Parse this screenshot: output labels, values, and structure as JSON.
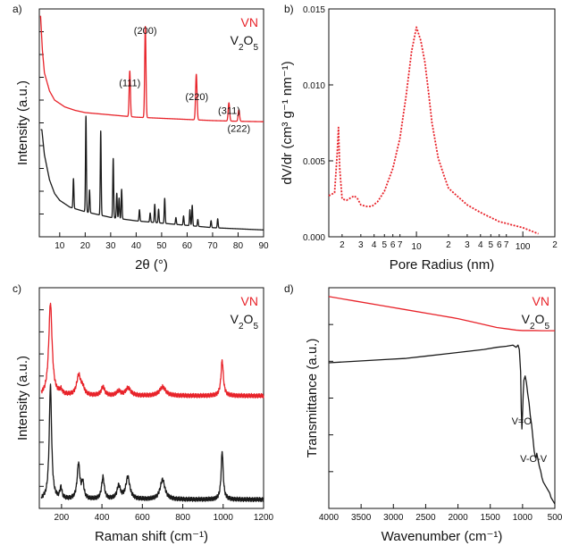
{
  "colors": {
    "vn": "#e8232a",
    "v2o5": "#1a1a1a"
  },
  "panels": [
    {
      "id": "a",
      "label": "a)"
    },
    {
      "id": "b",
      "label": "b)"
    },
    {
      "id": "c",
      "label": "c)"
    },
    {
      "id": "d",
      "label": "d)"
    }
  ],
  "chart_data": [
    {
      "id": "a",
      "type": "line",
      "xlabel": "2θ (°)",
      "ylabel": "Intensity (a.u.)",
      "xlim": [
        2,
        90
      ],
      "ylim": [
        0,
        1
      ],
      "xticks": [
        10,
        20,
        30,
        40,
        50,
        60,
        70,
        80,
        90
      ],
      "yticks_labeled": false,
      "legend": [
        "VN",
        "V2O5"
      ],
      "legend_position": "top-right",
      "annotations": [
        {
          "text": "(111)",
          "x": 37.5,
          "y": 0.66
        },
        {
          "text": "(200)",
          "x": 43.6,
          "y": 0.89
        },
        {
          "text": "(220)",
          "x": 63.8,
          "y": 0.6
        },
        {
          "text": "(311)",
          "x": 76.5,
          "y": 0.54
        },
        {
          "text": "(222)",
          "x": 80.3,
          "y": 0.46
        }
      ],
      "series": [
        {
          "name": "VN",
          "color_key": "vn",
          "baseline": [
            [
              2.5,
              0.97
            ],
            [
              3.2,
              0.82
            ],
            [
              4,
              0.72
            ],
            [
              6,
              0.64
            ],
            [
              8,
              0.6
            ],
            [
              12,
              0.57
            ],
            [
              16,
              0.555
            ],
            [
              20,
              0.545
            ],
            [
              30,
              0.535
            ],
            [
              40,
              0.525
            ],
            [
              50,
              0.52
            ],
            [
              60,
              0.515
            ],
            [
              70,
              0.51
            ],
            [
              80,
              0.507
            ],
            [
              90,
              0.505
            ]
          ],
          "peaks": [
            [
              37.5,
              0.2,
              0.35
            ],
            [
              43.6,
              0.4,
              0.35
            ],
            [
              63.6,
              0.2,
              0.4
            ],
            [
              76.4,
              0.08,
              0.4
            ],
            [
              80.3,
              0.05,
              0.4
            ]
          ]
        },
        {
          "name": "V2O5",
          "color_key": "v2o5",
          "baseline": [
            [
              3,
              0.47
            ],
            [
              4,
              0.36
            ],
            [
              6,
              0.25
            ],
            [
              8,
              0.19
            ],
            [
              10,
              0.16
            ],
            [
              14,
              0.13
            ],
            [
              20,
              0.11
            ],
            [
              30,
              0.085
            ],
            [
              40,
              0.07
            ],
            [
              50,
              0.06
            ],
            [
              60,
              0.05
            ],
            [
              70,
              0.04
            ],
            [
              80,
              0.035
            ],
            [
              90,
              0.03
            ]
          ],
          "peaks": [
            [
              15.4,
              0.13,
              0.25
            ],
            [
              20.3,
              0.42,
              0.25
            ],
            [
              21.7,
              0.1,
              0.25
            ],
            [
              26.1,
              0.37,
              0.25
            ],
            [
              31.0,
              0.26,
              0.25
            ],
            [
              32.4,
              0.11,
              0.25
            ],
            [
              33.3,
              0.09,
              0.25
            ],
            [
              34.3,
              0.13,
              0.25
            ],
            [
              41.3,
              0.05,
              0.25
            ],
            [
              45.5,
              0.04,
              0.25
            ],
            [
              47.3,
              0.08,
              0.25
            ],
            [
              48.8,
              0.06,
              0.25
            ],
            [
              51.2,
              0.11,
              0.25
            ],
            [
              55.6,
              0.03,
              0.25
            ],
            [
              58.6,
              0.04,
              0.25
            ],
            [
              61.1,
              0.07,
              0.25
            ],
            [
              62.0,
              0.09,
              0.25
            ],
            [
              64.2,
              0.03,
              0.25
            ],
            [
              69.4,
              0.03,
              0.25
            ],
            [
              72.0,
              0.04,
              0.25
            ]
          ]
        }
      ]
    },
    {
      "id": "b",
      "type": "line",
      "xscale": "log",
      "xlabel": "Pore Radius (nm)",
      "ylabel": "dV/dr (cm³ g⁻¹ nm⁻¹)",
      "xlim": [
        1.5,
        200
      ],
      "ylim": [
        0,
        0.015
      ],
      "xticks_major": [
        10,
        100
      ],
      "xticks_minor": [
        [
          2,
          "2"
        ],
        [
          3,
          "3"
        ],
        [
          4,
          "4"
        ],
        [
          5,
          "5"
        ],
        [
          6,
          "6"
        ],
        [
          7,
          "7"
        ],
        [
          20,
          "2"
        ],
        [
          30,
          "3"
        ],
        [
          40,
          "4"
        ],
        [
          50,
          "5"
        ],
        [
          60,
          "6"
        ],
        [
          70,
          "7"
        ],
        [
          200,
          "2"
        ]
      ],
      "yticks": [
        0.0,
        0.005,
        0.01,
        0.015
      ],
      "ytick_labels": [
        "0.000",
        "0.005",
        "0.010",
        "0.015"
      ],
      "series": [
        {
          "name": "",
          "color_key": "vn",
          "style": "dotted",
          "x": [
            1.5,
            1.7,
            1.8,
            1.85,
            1.9,
            2.0,
            2.2,
            2.6,
            2.8,
            3.0,
            3.4,
            3.8,
            4.3,
            5,
            6,
            7,
            8,
            9,
            10,
            11,
            12,
            13,
            14,
            16,
            18,
            20,
            24,
            30,
            40,
            60,
            100,
            140
          ],
          "y": [
            0.0027,
            0.0029,
            0.0055,
            0.0072,
            0.0045,
            0.0025,
            0.0024,
            0.0027,
            0.0025,
            0.0021,
            0.002,
            0.002,
            0.0023,
            0.003,
            0.0045,
            0.0065,
            0.0093,
            0.0122,
            0.0138,
            0.0129,
            0.0115,
            0.0095,
            0.0075,
            0.0052,
            0.0041,
            0.0032,
            0.0027,
            0.0021,
            0.0016,
            0.001,
            0.0006,
            0.0002
          ]
        }
      ]
    },
    {
      "id": "c",
      "type": "line",
      "xlabel": "Raman shift (cm⁻¹)",
      "ylabel": "Intensity (a.u.)",
      "xlim": [
        90,
        1200
      ],
      "ylim": [
        0,
        1
      ],
      "xticks": [
        200,
        400,
        600,
        800,
        1000,
        1200
      ],
      "yticks_labeled": false,
      "legend": [
        "VN",
        "V2O5"
      ],
      "legend_position": "top-right",
      "series": [
        {
          "name": "VN",
          "color_key": "vn",
          "base": 0.51,
          "peaks": [
            [
              145,
              0.42,
              10
            ],
            [
              197,
              0.02,
              8
            ],
            [
              285,
              0.09,
              12
            ],
            [
              305,
              0.03,
              10
            ],
            [
              405,
              0.04,
              10
            ],
            [
              483,
              0.02,
              12
            ],
            [
              530,
              0.035,
              15
            ],
            [
              700,
              0.04,
              18
            ],
            [
              995,
              0.16,
              7
            ]
          ]
        },
        {
          "name": "V2O5",
          "color_key": "v2o5",
          "base": 0.04,
          "peaks": [
            [
              145,
              0.52,
              7
            ],
            [
              197,
              0.05,
              6
            ],
            [
              284,
              0.16,
              8
            ],
            [
              305,
              0.07,
              7
            ],
            [
              405,
              0.1,
              8
            ],
            [
              483,
              0.06,
              10
            ],
            [
              528,
              0.1,
              12
            ],
            [
              700,
              0.09,
              14
            ],
            [
              995,
              0.22,
              6
            ]
          ]
        }
      ]
    },
    {
      "id": "d",
      "type": "line",
      "xlabel": "Wavenumber (cm⁻¹)",
      "ylabel": "Transmittance (a.u.)",
      "xlim": [
        4000,
        500
      ],
      "ylim": [
        0,
        1
      ],
      "xticks": [
        4000,
        3500,
        3000,
        2500,
        2000,
        1500,
        1000,
        500
      ],
      "yticks_labeled": false,
      "legend": [
        "VN",
        "V2O5"
      ],
      "legend_position": "top-right",
      "annotations": [
        {
          "text": "V=O",
          "x": 1015,
          "y": 0.38
        },
        {
          "text": "V-O-V",
          "x": 830,
          "y": 0.21
        }
      ],
      "series": [
        {
          "name": "VN",
          "color_key": "vn",
          "x": [
            4000,
            3600,
            3200,
            2800,
            2400,
            2000,
            1700,
            1400,
            1200,
            1100,
            1000,
            900,
            800,
            700,
            600,
            500
          ],
          "y": [
            0.96,
            0.94,
            0.92,
            0.9,
            0.88,
            0.86,
            0.84,
            0.82,
            0.812,
            0.808,
            0.806,
            0.806,
            0.806,
            0.805,
            0.805,
            0.805
          ]
        },
        {
          "name": "V2O5",
          "color_key": "v2o5",
          "x": [
            4000,
            3700,
            3400,
            3100,
            2800,
            2500,
            2200,
            1900,
            1600,
            1400,
            1250,
            1150,
            1100,
            1070,
            1050,
            1030,
            1020,
            1010,
            1000,
            990,
            980,
            960,
            940,
            920,
            900,
            880,
            860,
            840,
            820,
            800,
            790,
            780,
            760,
            740,
            720,
            700,
            680,
            660,
            640,
            620,
            600,
            580,
            560,
            540,
            520,
            500
          ],
          "y": [
            0.66,
            0.665,
            0.67,
            0.675,
            0.68,
            0.69,
            0.7,
            0.71,
            0.72,
            0.73,
            0.735,
            0.74,
            0.73,
            0.74,
            0.72,
            0.62,
            0.45,
            0.36,
            0.43,
            0.52,
            0.58,
            0.6,
            0.57,
            0.52,
            0.48,
            0.42,
            0.38,
            0.32,
            0.26,
            0.23,
            0.23,
            0.25,
            0.22,
            0.19,
            0.17,
            0.14,
            0.12,
            0.11,
            0.1,
            0.09,
            0.08,
            0.07,
            0.05,
            0.04,
            0.03,
            0.02
          ]
        }
      ]
    }
  ]
}
